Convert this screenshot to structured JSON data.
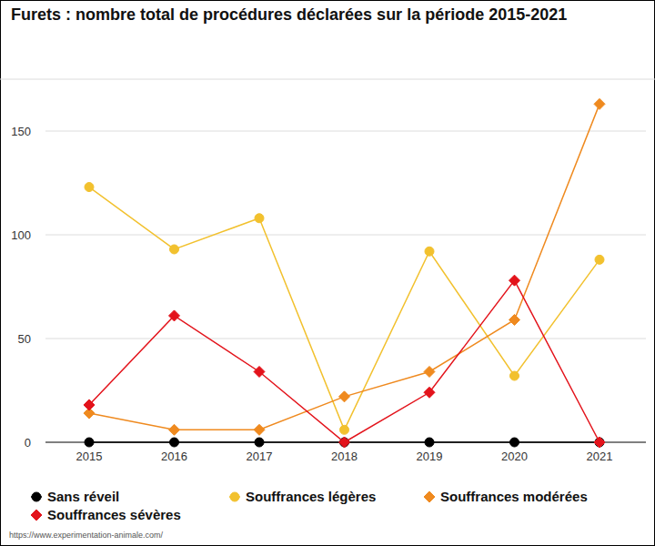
{
  "chart_data": {
    "type": "line",
    "title": "Furets : nombre total de procédures déclarées sur la période 2015-2021",
    "source": "https://www.experimentation-animale.com/",
    "categories": [
      "2015",
      "2016",
      "2017",
      "2018",
      "2019",
      "2020",
      "2021"
    ],
    "series": [
      {
        "name": "Sans réveil",
        "color": "#000000",
        "marker": "circle",
        "values": [
          0,
          0,
          0,
          0,
          0,
          0,
          0
        ]
      },
      {
        "name": "Souffrances légères",
        "color": "#f2c12e",
        "marker": "circle",
        "values": [
          123,
          93,
          108,
          6,
          92,
          32,
          88
        ]
      },
      {
        "name": "Souffrances modérées",
        "color": "#ef8a1f",
        "marker": "diamond",
        "values": [
          14,
          6,
          6,
          22,
          34,
          59,
          163
        ]
      },
      {
        "name": "Souffrances sévères",
        "color": "#e3131b",
        "marker": "diamond",
        "values": [
          18,
          61,
          34,
          0,
          24,
          78,
          0
        ]
      }
    ],
    "ylim": [
      0,
      175
    ],
    "yticks": [
      0,
      50,
      100,
      150
    ],
    "grid": true,
    "legend": "bottom"
  }
}
